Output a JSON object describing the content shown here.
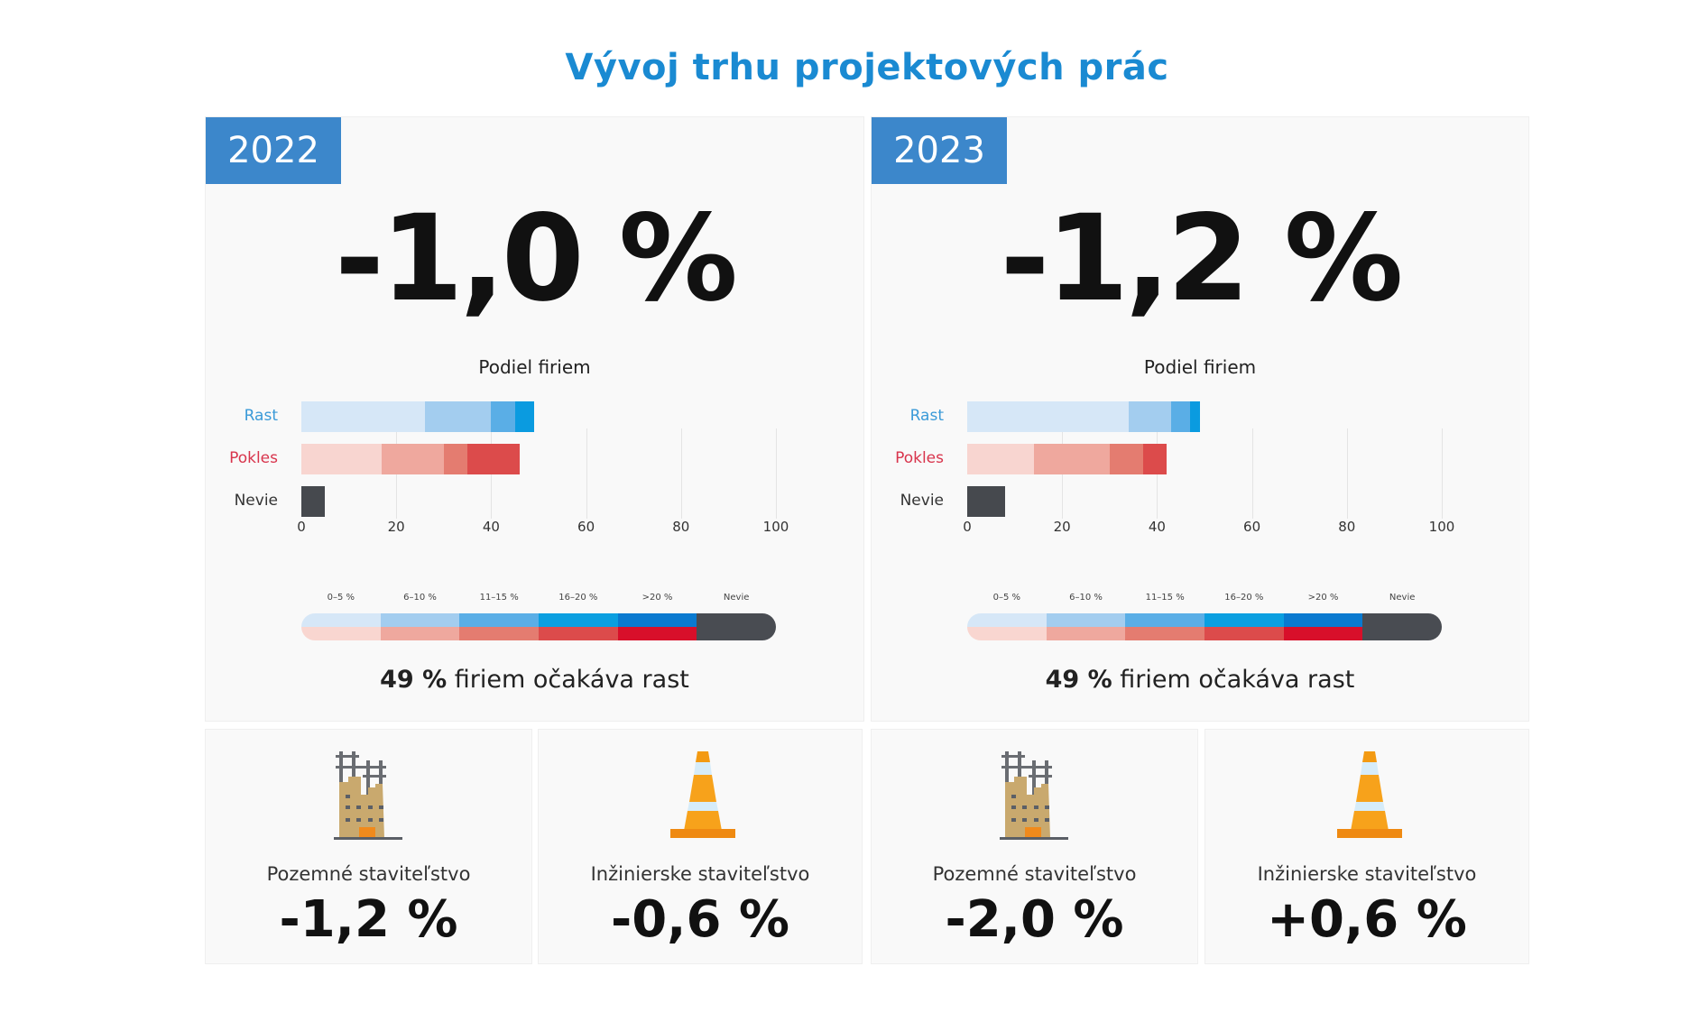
{
  "title": "Vývoj trhu projektových prác",
  "chart_data": [
    {
      "type": "bar",
      "stacked": true,
      "orientation": "horizontal",
      "year": "2022",
      "headline": "-1,0 %",
      "title": "Podiel firiem",
      "categories": [
        "Rast",
        "Pokles",
        "Nevie"
      ],
      "series": [
        {
          "name": "0–5 %",
          "values": [
            26,
            17,
            0
          ]
        },
        {
          "name": "6–10 %",
          "values": [
            14,
            13,
            0
          ]
        },
        {
          "name": "11–15 %",
          "values": [
            5,
            5,
            0
          ]
        },
        {
          "name": "16–20 %",
          "values": [
            4,
            11,
            0
          ]
        },
        {
          "name": "Nevie",
          "values": [
            0,
            0,
            5
          ]
        }
      ],
      "xlim": [
        0,
        100
      ],
      "xticks": [
        "0",
        "20",
        "40",
        "60",
        "80",
        "100"
      ],
      "summary_value": "49 %",
      "summary_text": "firiem očakáva rast"
    },
    {
      "type": "bar",
      "stacked": true,
      "orientation": "horizontal",
      "year": "2023",
      "headline": "-1,2 %",
      "title": "Podiel firiem",
      "categories": [
        "Rast",
        "Pokles",
        "Nevie"
      ],
      "series": [
        {
          "name": "0–5 %",
          "values": [
            34,
            14,
            0
          ]
        },
        {
          "name": "6–10 %",
          "values": [
            9,
            16,
            0
          ]
        },
        {
          "name": "11–15 %",
          "values": [
            4,
            7,
            0
          ]
        },
        {
          "name": "16–20 %",
          "values": [
            2,
            5,
            0
          ]
        },
        {
          "name": "Nevie",
          "values": [
            0,
            0,
            8
          ]
        }
      ],
      "xlim": [
        0,
        100
      ],
      "xticks": [
        "0",
        "20",
        "40",
        "60",
        "80",
        "100"
      ],
      "summary_value": "49 %",
      "summary_text": "firiem očakáva rast"
    }
  ],
  "legend": {
    "labels": [
      "0–5 %",
      "6–10 %",
      "11–15 %",
      "16–20 %",
      ">20 %",
      "Nevie"
    ],
    "blue": [
      "#d6e7f7",
      "#a3cdef",
      "#5aaee6",
      "#0a9fe0",
      "#0a7ad0",
      "#494c52"
    ],
    "red": [
      "#f9d6d0",
      "#efa89e",
      "#e47c70",
      "#dc4b4b",
      "#d80f2a",
      "#494c52"
    ]
  },
  "colors": {
    "rast_label": "#3a9ad8",
    "pokles_label": "#d8344c",
    "nevie_label": "#333333",
    "rast": [
      "#d6e7f7",
      "#a3cdef",
      "#5aaee6",
      "#0a9be0"
    ],
    "pokles": [
      "#f8d5d0",
      "#efa89e",
      "#e47c70",
      "#dc4b4b"
    ],
    "nevie": "#46494e"
  },
  "sectors": [
    {
      "label": "Pozemné staviteľstvo",
      "value": "-1,2 %",
      "icon": "building-icon"
    },
    {
      "label": "Inžinierske staviteľstvo",
      "value": "-0,6 %",
      "icon": "traffic-cone-icon"
    },
    {
      "label": "Pozemné staviteľstvo",
      "value": "-2,0 %",
      "icon": "building-icon"
    },
    {
      "label": "Inžinierske staviteľstvo",
      "value": "+0,6 %",
      "icon": "traffic-cone-icon"
    }
  ]
}
